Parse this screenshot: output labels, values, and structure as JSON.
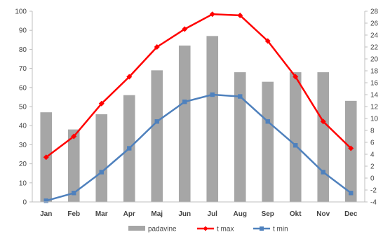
{
  "chart_data": {
    "type": "bar",
    "categories": [
      "Jan",
      "Feb",
      "Mar",
      "Apr",
      "Maj",
      "Jun",
      "Jul",
      "Aug",
      "Sep",
      "Okt",
      "Nov",
      "Dec"
    ],
    "y_left": {
      "min": 0,
      "max": 100,
      "step": 10
    },
    "y_right": {
      "min": -4,
      "max": 28,
      "step": 2
    },
    "grid": false,
    "legend_position": "bottom",
    "series": [
      {
        "name": "padavine",
        "kind": "bar",
        "axis": "left",
        "color": "#a6a6a6",
        "values": [
          47,
          38,
          46,
          56,
          69,
          82,
          87,
          68,
          63,
          68,
          68,
          53
        ]
      },
      {
        "name": "t max",
        "kind": "line",
        "axis": "right",
        "color": "#ff0000",
        "marker": "diamond",
        "values": [
          3.5,
          7,
          12.5,
          17,
          22,
          25,
          27.5,
          27.3,
          23,
          17,
          9.5,
          5
        ]
      },
      {
        "name": "t min",
        "kind": "line",
        "axis": "right",
        "color": "#4f81bd",
        "marker": "square",
        "values": [
          -3.8,
          -2.5,
          1,
          5,
          9.5,
          12.8,
          14,
          13.7,
          9.5,
          5.5,
          1,
          -2.5
        ]
      }
    ]
  }
}
